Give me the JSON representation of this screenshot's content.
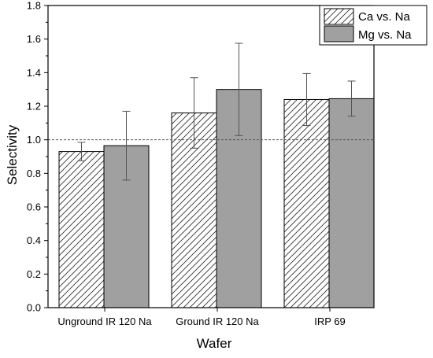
{
  "chart_data": {
    "type": "bar",
    "title": "",
    "xlabel": "Wafer",
    "ylabel": "Selectivity",
    "ylim": [
      0,
      1.8
    ],
    "yticks": [
      "0.0",
      "0.2",
      "0.4",
      "0.6",
      "0.8",
      "1.0",
      "1.2",
      "1.4",
      "1.6",
      "1.8"
    ],
    "categories": [
      "Unground IR 120 Na",
      "Ground IR 120 Na",
      "IRP 69"
    ],
    "series": [
      {
        "name": "Ca vs. Na",
        "values": [
          0.93,
          1.16,
          1.24
        ],
        "errors": [
          0.055,
          0.21,
          0.155
        ],
        "color": "#ffffff",
        "pattern": "diagonal-hatch"
      },
      {
        "name": "Mg vs. Na",
        "values": [
          0.965,
          1.3,
          1.245
        ],
        "errors": [
          0.205,
          0.275,
          0.105
        ],
        "color": "#a0a0a0",
        "pattern": "solid"
      }
    ],
    "reference_line": {
      "y": 1.0,
      "style": "dashed"
    },
    "legend_position": "top-right",
    "grid": false
  }
}
